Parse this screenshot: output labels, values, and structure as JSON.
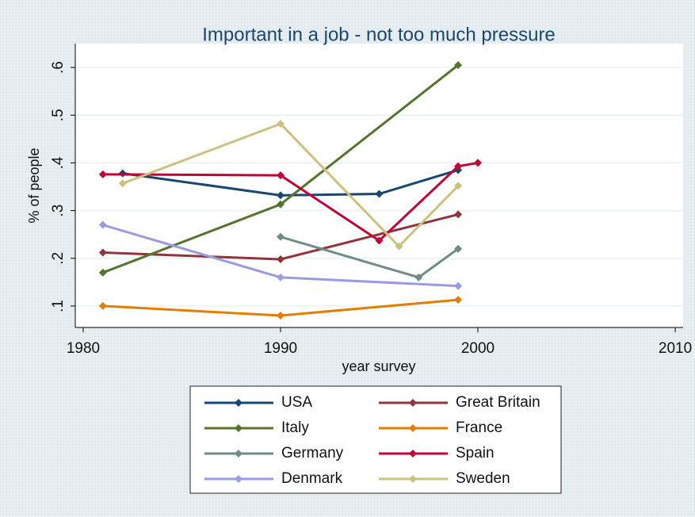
{
  "chart_data": {
    "type": "line",
    "title": "Important  in a job - not too much pressure",
    "xlabel": "year survey",
    "ylabel": "% of people",
    "xlim": [
      1979.6,
      2010.4
    ],
    "xticks": [
      1980,
      1990,
      2000,
      2010
    ],
    "ylim": [
      0.055,
      0.65
    ],
    "yticks": [
      {
        "value": 0.1,
        "label": ".1"
      },
      {
        "value": 0.2,
        "label": ".2"
      },
      {
        "value": 0.3,
        "label": ".3"
      },
      {
        "value": 0.4,
        "label": ".4"
      },
      {
        "value": 0.5,
        "label": ".5"
      },
      {
        "value": 0.6,
        "label": ".6"
      }
    ],
    "grid": true,
    "legend": "bottom",
    "series": [
      {
        "name": "USA",
        "color": "#1a476f",
        "x": [
          1982,
          1990,
          1995,
          1999
        ],
        "values": [
          0.378,
          0.332,
          0.335,
          0.385
        ]
      },
      {
        "name": "Great Britain",
        "color": "#90353b",
        "x": [
          1981,
          1990,
          1999
        ],
        "values": [
          0.212,
          0.198,
          0.292
        ]
      },
      {
        "name": "Italy",
        "color": "#55752f",
        "x": [
          1981,
          1990,
          1999
        ],
        "values": [
          0.17,
          0.313,
          0.605
        ]
      },
      {
        "name": "France",
        "color": "#e37e00",
        "x": [
          1981,
          1990,
          1999
        ],
        "values": [
          0.1,
          0.08,
          0.113
        ]
      },
      {
        "name": "Germany",
        "color": "#6e8e84",
        "x": [
          1990,
          1997,
          1999
        ],
        "values": [
          0.245,
          0.16,
          0.22
        ]
      },
      {
        "name": "Spain",
        "color": "#c10534",
        "x": [
          1981,
          1990,
          1995,
          1999,
          2000
        ],
        "values": [
          0.376,
          0.374,
          0.237,
          0.393,
          0.4
        ]
      },
      {
        "name": "Denmark",
        "color": "#9b9be2",
        "x": [
          1981,
          1990,
          1999
        ],
        "values": [
          0.27,
          0.16,
          0.142
        ]
      },
      {
        "name": "Sweden",
        "color": "#cac27e",
        "x": [
          1982,
          1990,
          1996,
          1999
        ],
        "values": [
          0.357,
          0.482,
          0.225,
          0.352
        ]
      }
    ]
  }
}
